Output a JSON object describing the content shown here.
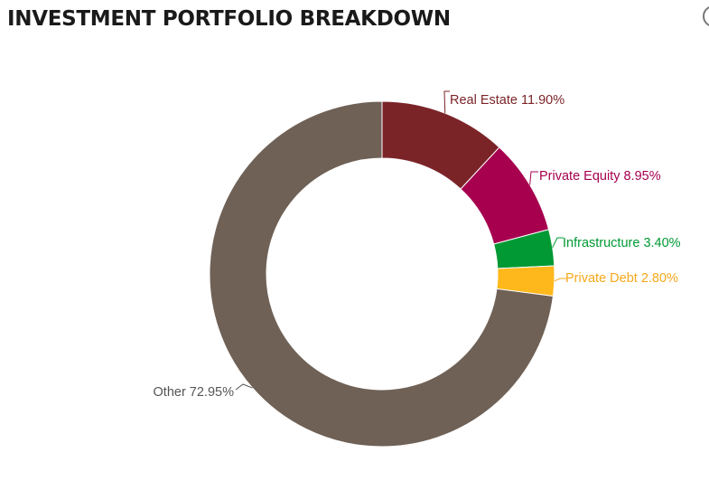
{
  "page": {
    "title": "INVESTMENT PORTFOLIO BREAKDOWN"
  },
  "chart_data": {
    "type": "pie",
    "variant": "donut",
    "title": "INVESTMENT PORTFOLIO BREAKDOWN",
    "slices": [
      {
        "label": "Real Estate",
        "value": 11.9,
        "display": "Real Estate 11.90%",
        "color": "#7b2428"
      },
      {
        "label": "Private Equity",
        "value": 8.95,
        "display": "Private Equity 8.95%",
        "color": "#a6004f"
      },
      {
        "label": "Infrastructure",
        "value": 3.4,
        "display": "Infrastructure 3.40%",
        "color": "#009933"
      },
      {
        "label": "Private Debt",
        "value": 2.8,
        "display": "Private Debt 2.80%",
        "color": "#ffb81c"
      },
      {
        "label": "Other",
        "value": 72.95,
        "display": "Other 72.95%",
        "color": "#6f6156"
      }
    ],
    "label_colors": {
      "Real Estate": "#7b2428",
      "Private Equity": "#a6004f",
      "Infrastructure": "#009933",
      "Private Debt": "#f6a81b",
      "Other": "#555555"
    },
    "legend": "none"
  }
}
